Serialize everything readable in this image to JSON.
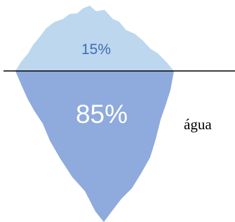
{
  "iceberg": {
    "above_label": "15%",
    "below_label": "85%"
  },
  "water_label": "água"
}
